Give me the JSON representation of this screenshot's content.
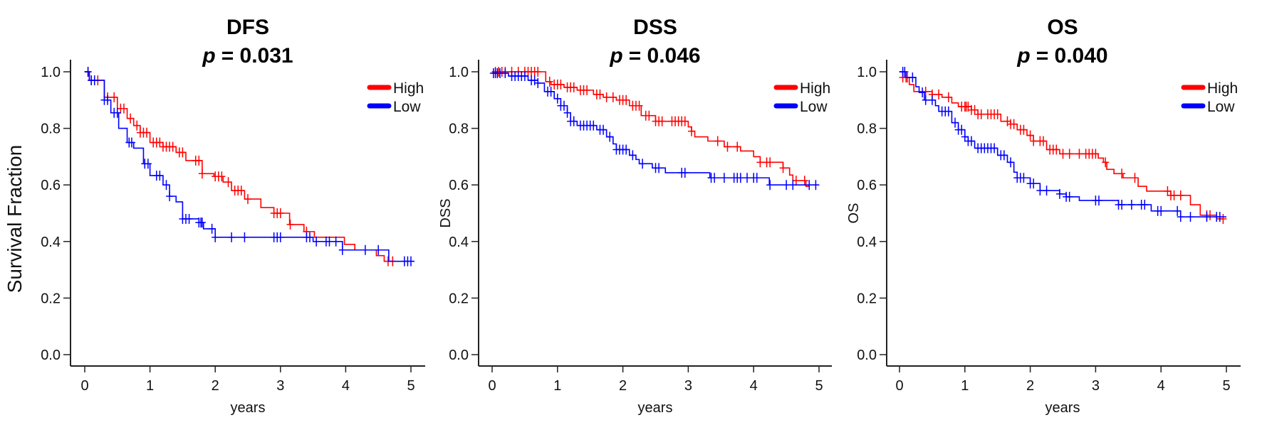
{
  "chart_data": [
    {
      "type": "line",
      "subtype": "kaplan-meier",
      "title": "DFS",
      "p_label": "p",
      "p_value": "= 0.031",
      "xlabel": "years",
      "ylabel": "Survival Fraction",
      "xlim": [
        0,
        5
      ],
      "ylim": [
        0,
        1
      ],
      "xticks": [
        "0",
        "1",
        "2",
        "3",
        "4",
        "5"
      ],
      "yticks": [
        "0.0",
        "0.2",
        "0.4",
        "0.6",
        "0.8",
        "1.0"
      ],
      "grid": false,
      "legend": {
        "position": "top-right",
        "entries": [
          "High",
          "Low"
        ]
      },
      "series": [
        {
          "name": "High",
          "color": "#ff0000",
          "steps": [
            [
              0,
              1.0
            ],
            [
              0.07,
              0.97
            ],
            [
              0.3,
              0.91
            ],
            [
              0.5,
              0.87
            ],
            [
              0.65,
              0.835
            ],
            [
              0.75,
              0.81
            ],
            [
              0.85,
              0.785
            ],
            [
              1.0,
              0.75
            ],
            [
              1.2,
              0.735
            ],
            [
              1.4,
              0.715
            ],
            [
              1.55,
              0.686
            ],
            [
              1.8,
              0.64
            ],
            [
              1.98,
              0.63
            ],
            [
              2.12,
              0.61
            ],
            [
              2.25,
              0.58
            ],
            [
              2.45,
              0.55
            ],
            [
              2.7,
              0.52
            ],
            [
              2.9,
              0.5
            ],
            [
              3.14,
              0.46
            ],
            [
              3.36,
              0.435
            ],
            [
              3.52,
              0.415
            ],
            [
              3.98,
              0.39
            ],
            [
              4.14,
              0.37
            ],
            [
              4.47,
              0.35
            ],
            [
              4.59,
              0.33
            ],
            [
              4.75,
              0.33
            ]
          ],
          "censor_times": [
            0.05,
            0.1,
            0.15,
            0.2,
            0.35,
            0.45,
            0.55,
            0.6,
            0.7,
            0.8,
            0.85,
            0.9,
            0.95,
            1.05,
            1.1,
            1.15,
            1.2,
            1.25,
            1.3,
            1.35,
            1.45,
            1.5,
            1.7,
            1.75,
            1.8,
            2.0,
            2.05,
            2.1,
            2.2,
            2.3,
            2.35,
            2.4,
            2.5,
            2.9,
            2.95,
            3.0,
            3.15,
            3.4,
            4.65,
            4.72
          ]
        },
        {
          "name": "Low",
          "color": "#0000ff",
          "steps": [
            [
              0,
              1.0
            ],
            [
              0.07,
              0.97
            ],
            [
              0.3,
              0.9
            ],
            [
              0.4,
              0.855
            ],
            [
              0.52,
              0.8
            ],
            [
              0.65,
              0.75
            ],
            [
              0.75,
              0.73
            ],
            [
              0.9,
              0.675
            ],
            [
              1.0,
              0.633
            ],
            [
              1.2,
              0.6
            ],
            [
              1.3,
              0.56
            ],
            [
              1.4,
              0.54
            ],
            [
              1.5,
              0.48
            ],
            [
              1.75,
              0.467
            ],
            [
              1.82,
              0.445
            ],
            [
              2.0,
              0.415
            ],
            [
              3.5,
              0.4
            ],
            [
              3.95,
              0.37
            ],
            [
              4.66,
              0.33
            ],
            [
              5.05,
              0.33
            ]
          ],
          "censor_times": [
            0.05,
            0.1,
            0.15,
            0.3,
            0.35,
            0.45,
            0.5,
            0.68,
            0.72,
            0.92,
            0.97,
            1.1,
            1.15,
            1.25,
            1.3,
            1.5,
            1.55,
            1.6,
            1.75,
            1.78,
            1.8,
            1.95,
            2.0,
            2.25,
            2.45,
            2.9,
            2.95,
            3.0,
            3.4,
            3.45,
            3.55,
            3.7,
            3.75,
            3.85,
            3.95,
            4.3,
            4.5,
            4.9,
            4.95,
            5.0
          ]
        }
      ]
    },
    {
      "type": "line",
      "subtype": "kaplan-meier",
      "title": "DSS",
      "p_label": "p",
      "p_value": "= 0.046",
      "xlabel": "years",
      "ylabel": "DSS",
      "xlim": [
        0,
        5
      ],
      "ylim": [
        0,
        1
      ],
      "xticks": [
        "0",
        "1",
        "2",
        "3",
        "4",
        "5"
      ],
      "yticks": [
        "0.0",
        "0.2",
        "0.4",
        "0.6",
        "0.8",
        "1.0"
      ],
      "grid": false,
      "legend": {
        "position": "top-right",
        "entries": [
          "High",
          "Low"
        ]
      },
      "series": [
        {
          "name": "High",
          "color": "#ff0000",
          "steps": [
            [
              0,
              1.0
            ],
            [
              0.82,
              0.965
            ],
            [
              0.9,
              0.955
            ],
            [
              1.1,
              0.945
            ],
            [
              1.3,
              0.935
            ],
            [
              1.55,
              0.92
            ],
            [
              1.7,
              0.91
            ],
            [
              1.9,
              0.9
            ],
            [
              2.1,
              0.88
            ],
            [
              2.28,
              0.845
            ],
            [
              2.5,
              0.825
            ],
            [
              3.0,
              0.805
            ],
            [
              3.05,
              0.79
            ],
            [
              3.1,
              0.77
            ],
            [
              3.3,
              0.755
            ],
            [
              3.55,
              0.735
            ],
            [
              3.8,
              0.72
            ],
            [
              4.0,
              0.7
            ],
            [
              4.1,
              0.68
            ],
            [
              4.45,
              0.66
            ],
            [
              4.55,
              0.635
            ],
            [
              4.6,
              0.615
            ],
            [
              4.8,
              0.595
            ],
            [
              4.85,
              0.595
            ]
          ],
          "censor_times": [
            0.05,
            0.1,
            0.15,
            0.2,
            0.3,
            0.4,
            0.5,
            0.55,
            0.6,
            0.65,
            0.7,
            0.88,
            0.95,
            1.0,
            1.05,
            1.15,
            1.2,
            1.25,
            1.35,
            1.4,
            1.45,
            1.6,
            1.65,
            1.75,
            1.85,
            1.95,
            2.0,
            2.05,
            2.15,
            2.2,
            2.25,
            2.35,
            2.4,
            2.5,
            2.55,
            2.6,
            2.75,
            2.8,
            2.85,
            2.9,
            2.95,
            3.05,
            3.45,
            3.6,
            3.75,
            4.1,
            4.2,
            4.25,
            4.45,
            4.65,
            4.78
          ]
        },
        {
          "name": "Low",
          "color": "#0000ff",
          "steps": [
            [
              0,
              0.995
            ],
            [
              0.25,
              0.985
            ],
            [
              0.55,
              0.97
            ],
            [
              0.7,
              0.96
            ],
            [
              0.8,
              0.93
            ],
            [
              0.95,
              0.905
            ],
            [
              1.05,
              0.88
            ],
            [
              1.15,
              0.855
            ],
            [
              1.2,
              0.825
            ],
            [
              1.3,
              0.81
            ],
            [
              1.6,
              0.795
            ],
            [
              1.75,
              0.77
            ],
            [
              1.85,
              0.745
            ],
            [
              1.9,
              0.725
            ],
            [
              2.1,
              0.705
            ],
            [
              2.2,
              0.69
            ],
            [
              2.25,
              0.675
            ],
            [
              2.45,
              0.66
            ],
            [
              2.65,
              0.643
            ],
            [
              3.33,
              0.625
            ],
            [
              4.24,
              0.6
            ],
            [
              5.0,
              0.6
            ]
          ],
          "censor_times": [
            0.02,
            0.05,
            0.08,
            0.12,
            0.2,
            0.3,
            0.35,
            0.4,
            0.45,
            0.5,
            0.6,
            0.65,
            0.7,
            0.85,
            0.9,
            1.0,
            1.05,
            1.1,
            1.15,
            1.2,
            1.25,
            1.35,
            1.4,
            1.45,
            1.5,
            1.55,
            1.65,
            1.7,
            1.8,
            1.9,
            1.95,
            2.0,
            2.05,
            2.15,
            2.3,
            2.5,
            2.55,
            2.9,
            2.95,
            3.35,
            3.4,
            3.55,
            3.7,
            3.75,
            3.8,
            3.9,
            4.0,
            4.05,
            4.25,
            4.5,
            4.6,
            4.85,
            4.95
          ]
        }
      ]
    },
    {
      "type": "line",
      "subtype": "kaplan-meier",
      "title": "OS",
      "p_label": "p",
      "p_value": "= 0.040",
      "xlabel": "years",
      "ylabel": "OS",
      "xlim": [
        0,
        5
      ],
      "ylim": [
        0,
        1
      ],
      "xticks": [
        "0",
        "1",
        "2",
        "3",
        "4",
        "5"
      ],
      "yticks": [
        "0.0",
        "0.2",
        "0.4",
        "0.6",
        "0.8",
        "1.0"
      ],
      "grid": false,
      "legend": {
        "position": "top-right",
        "entries": [
          "High",
          "Low"
        ]
      },
      "series": [
        {
          "name": "High",
          "color": "#ff0000",
          "steps": [
            [
              0,
              1.0
            ],
            [
              0.05,
              0.98
            ],
            [
              0.15,
              0.955
            ],
            [
              0.22,
              0.93
            ],
            [
              0.5,
              0.92
            ],
            [
              0.65,
              0.91
            ],
            [
              0.8,
              0.89
            ],
            [
              0.9,
              0.877
            ],
            [
              1.1,
              0.865
            ],
            [
              1.2,
              0.85
            ],
            [
              1.55,
              0.825
            ],
            [
              1.7,
              0.815
            ],
            [
              1.8,
              0.795
            ],
            [
              1.95,
              0.775
            ],
            [
              2.05,
              0.755
            ],
            [
              2.25,
              0.725
            ],
            [
              2.45,
              0.71
            ],
            [
              3.04,
              0.695
            ],
            [
              3.12,
              0.68
            ],
            [
              3.17,
              0.655
            ],
            [
              3.28,
              0.64
            ],
            [
              3.42,
              0.625
            ],
            [
              3.65,
              0.595
            ],
            [
              3.78,
              0.578
            ],
            [
              4.15,
              0.563
            ],
            [
              4.45,
              0.53
            ],
            [
              4.6,
              0.493
            ],
            [
              4.85,
              0.48
            ],
            [
              4.95,
              0.48
            ]
          ],
          "censor_times": [
            0.05,
            0.1,
            0.12,
            0.4,
            0.5,
            0.6,
            0.75,
            0.95,
            1.0,
            1.02,
            1.05,
            1.1,
            1.15,
            1.2,
            1.25,
            1.35,
            1.4,
            1.45,
            1.5,
            1.65,
            1.7,
            1.75,
            1.85,
            1.9,
            2.0,
            2.05,
            2.15,
            2.2,
            2.3,
            2.35,
            2.4,
            2.5,
            2.6,
            2.75,
            2.85,
            2.9,
            2.95,
            3.0,
            3.15,
            3.4,
            3.6,
            4.1,
            4.15,
            4.2,
            4.3,
            4.7,
            4.75,
            4.95
          ]
        },
        {
          "name": "Low",
          "color": "#0000ff",
          "steps": [
            [
              0,
              1.0
            ],
            [
              0.1,
              0.98
            ],
            [
              0.25,
              0.947
            ],
            [
              0.3,
              0.927
            ],
            [
              0.38,
              0.9
            ],
            [
              0.55,
              0.88
            ],
            [
              0.6,
              0.86
            ],
            [
              0.8,
              0.82
            ],
            [
              0.9,
              0.795
            ],
            [
              1.0,
              0.77
            ],
            [
              1.05,
              0.755
            ],
            [
              1.15,
              0.73
            ],
            [
              1.5,
              0.705
            ],
            [
              1.65,
              0.68
            ],
            [
              1.75,
              0.645
            ],
            [
              1.8,
              0.625
            ],
            [
              2.0,
              0.605
            ],
            [
              2.15,
              0.58
            ],
            [
              2.45,
              0.568
            ],
            [
              2.55,
              0.558
            ],
            [
              2.75,
              0.545
            ],
            [
              3.35,
              0.53
            ],
            [
              3.85,
              0.508
            ],
            [
              4.3,
              0.487
            ],
            [
              5.0,
              0.487
            ]
          ],
          "censor_times": [
            0.05,
            0.08,
            0.2,
            0.35,
            0.4,
            0.5,
            0.65,
            0.7,
            0.75,
            0.85,
            0.9,
            0.95,
            1.0,
            1.05,
            1.1,
            1.2,
            1.25,
            1.3,
            1.35,
            1.4,
            1.45,
            1.55,
            1.6,
            1.7,
            1.8,
            1.85,
            1.9,
            2.0,
            2.05,
            2.15,
            2.25,
            2.45,
            2.55,
            2.6,
            3.0,
            3.05,
            3.35,
            3.4,
            3.55,
            3.7,
            3.75,
            3.95,
            4.0,
            4.25,
            4.3,
            4.45,
            4.7,
            4.85,
            4.9
          ]
        }
      ]
    }
  ]
}
